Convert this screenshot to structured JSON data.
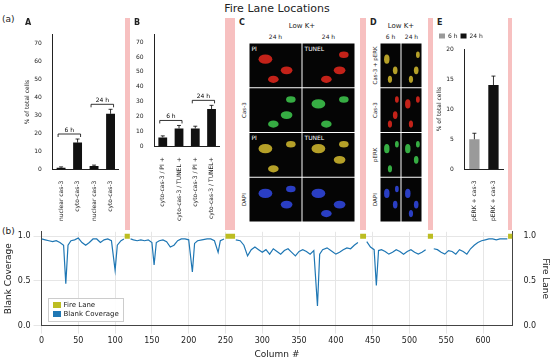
{
  "title": "Fire Lane Locations",
  "panel_labels": [
    "(a)",
    "(b)"
  ],
  "figure": {
    "panels": [
      {
        "label": "A",
        "type": "bar",
        "y_label": "% of total cells",
        "categories": [
          "nuclear cas-3",
          "cyto-cas-3",
          "nuclear cas-3",
          "cyto-cas-3"
        ],
        "values": [
          1,
          15,
          2,
          31
        ],
        "errors": [
          0.5,
          2,
          0.5,
          2.5
        ],
        "color": "#111111",
        "groups": [
          {
            "label": "6 h",
            "from": 0,
            "to": 1
          },
          {
            "label": "24 h",
            "from": 2,
            "to": 3
          }
        ],
        "ylim": [
          0,
          75
        ],
        "yticks": [
          0,
          10,
          20,
          30,
          40,
          50,
          60,
          70
        ],
        "grid": false
      },
      {
        "label": "B",
        "type": "bar",
        "categories": [
          "cyto-cas-3 / PI +",
          "cyto-cas-3 / TUNEL +",
          "cyto-cas-3 / PI +",
          "cyto-cas-3 / TUNEL+"
        ],
        "values": [
          6,
          12,
          12,
          25
        ],
        "errors": [
          1,
          2,
          1.5,
          2.5
        ],
        "color": "#111111",
        "groups": [
          {
            "label": "6 h",
            "from": 0,
            "to": 1
          },
          {
            "label": "24 h",
            "from": 2,
            "to": 3
          }
        ],
        "ylim": [
          0,
          75
        ],
        "yticks": [
          0,
          10,
          20,
          30,
          40,
          50,
          60,
          70
        ],
        "grid": false
      },
      {
        "label": "C",
        "type": "micrograph",
        "header": "Low K+",
        "columns": [
          "24 h",
          "24 h"
        ],
        "rows": [
          {
            "label": null,
            "cells": [
              "PI",
              "TUNEL"
            ],
            "color": "#d8261c"
          },
          {
            "label": "Cas-3",
            "cells": [
              null,
              null
            ],
            "color": "#3cc04a"
          },
          {
            "label": null,
            "cells": [
              "PI",
              "TUNEL"
            ],
            "color": "#c9b12c"
          },
          {
            "label": "DAPI",
            "cells": [
              null,
              null
            ],
            "color": "#2f45d8"
          }
        ]
      },
      {
        "label": "D",
        "type": "micrograph",
        "header": "Low K+",
        "columns": [
          "6 h",
          "24 h"
        ],
        "rows": [
          {
            "label": "Cas-3 + pERK",
            "cells": [
              null,
              null
            ],
            "color": "#c9b12c"
          },
          {
            "label": "Cas-3",
            "cells": [
              null,
              null
            ],
            "color": "#d8261c"
          },
          {
            "label": "pERK",
            "cells": [
              null,
              null
            ],
            "color": "#3cc04a"
          },
          {
            "label": "DAPI",
            "cells": [
              null,
              null
            ],
            "color": "#2f45d8"
          }
        ]
      },
      {
        "label": "E",
        "type": "bar",
        "y_label": "% of total cells",
        "categories": [
          "pERK + cas-3",
          "pERK + cas-3"
        ],
        "series": [
          {
            "name": "6 h",
            "color": "#9a9a9a",
            "values": [
              5,
              null
            ],
            "errors": [
              1,
              null
            ]
          },
          {
            "name": "24 h",
            "color": "#111111",
            "values": [
              null,
              14
            ],
            "errors": [
              null,
              1.5
            ]
          }
        ],
        "legend": "upper left",
        "ylim": [
          0,
          20
        ],
        "yticks": [
          0,
          5,
          10,
          15,
          20
        ],
        "grid": false
      }
    ]
  },
  "chart_data": {
    "type": "line",
    "x_label": "Column #",
    "y_label": "Blank Coverage",
    "y2_label": "Fire Lane",
    "xlim": [
      0,
      640
    ],
    "xticks": [
      0,
      50,
      100,
      150,
      200,
      250,
      300,
      350,
      400,
      450,
      500,
      550,
      600
    ],
    "ylim": [
      0,
      1.05
    ],
    "yticks": [
      {
        "value": 0,
        "label": "0.0"
      },
      0.5,
      {
        "value": 1,
        "label": "1.0"
      }
    ],
    "y2lim": [
      0,
      1.05
    ],
    "y2ticks": [
      {
        "value": 0,
        "label": "0.0"
      },
      0.5,
      {
        "value": 1,
        "label": "1.0"
      }
    ],
    "grid": true,
    "legend": "lower left",
    "series": [
      {
        "name": "Fire Lane",
        "color": "#bcbd22",
        "axis": "y2",
        "x": [
          113,
          120,
          121,
          250,
          263,
          264,
          433,
          441,
          442,
          525,
          532,
          533,
          634,
          640
        ],
        "values": [
          1,
          1,
          null,
          1,
          1,
          null,
          1,
          1,
          null,
          1,
          1,
          null,
          1,
          1
        ]
      },
      {
        "name": "Blank Coverage",
        "color": "#1f77b4",
        "x": [
          0,
          5,
          10,
          15,
          20,
          25,
          30,
          33,
          36,
          40,
          45,
          50,
          55,
          60,
          65,
          70,
          75,
          80,
          85,
          90,
          95,
          100,
          103,
          108,
          112,
          113,
          121,
          125,
          130,
          135,
          140,
          145,
          150,
          153,
          156,
          160,
          165,
          170,
          175,
          180,
          185,
          190,
          195,
          200,
          205,
          208,
          212,
          218,
          225,
          230,
          235,
          240,
          243,
          248,
          250,
          264,
          270,
          275,
          280,
          285,
          290,
          295,
          300,
          305,
          310,
          315,
          320,
          325,
          330,
          335,
          340,
          345,
          350,
          355,
          360,
          365,
          370,
          375,
          378,
          382,
          388,
          395,
          400,
          405,
          410,
          415,
          420,
          425,
          430,
          433,
          442,
          447,
          452,
          455,
          458,
          462,
          467,
          472,
          477,
          482,
          487,
          492,
          497,
          502,
          507,
          512,
          517,
          522,
          525,
          533,
          538,
          543,
          548,
          553,
          558,
          563,
          568,
          573,
          578,
          583,
          588,
          593,
          598,
          603,
          608,
          613,
          618,
          623,
          628,
          633
        ],
        "values": [
          0.97,
          0.96,
          0.95,
          0.94,
          0.95,
          0.93,
          0.9,
          0.47,
          0.9,
          0.95,
          0.96,
          0.98,
          0.93,
          0.9,
          0.93,
          0.97,
          0.97,
          0.93,
          0.96,
          0.97,
          0.95,
          0.62,
          0.9,
          0.95,
          0.97,
          null,
          0.97,
          0.96,
          0.95,
          0.96,
          0.95,
          0.96,
          0.93,
          0.68,
          0.93,
          0.95,
          0.96,
          0.94,
          0.88,
          0.9,
          0.95,
          0.97,
          0.97,
          0.96,
          0.6,
          0.92,
          0.95,
          0.96,
          0.97,
          0.97,
          0.95,
          0.82,
          0.95,
          0.97,
          null,
          0.96,
          0.95,
          0.9,
          0.78,
          0.85,
          0.88,
          0.85,
          0.82,
          0.85,
          0.8,
          0.86,
          0.83,
          0.8,
          0.84,
          0.86,
          0.82,
          0.78,
          0.83,
          0.85,
          0.83,
          0.8,
          0.84,
          0.22,
          0.8,
          0.85,
          0.87,
          0.83,
          0.8,
          0.82,
          0.85,
          0.87,
          0.86,
          0.9,
          0.93,
          null,
          0.94,
          0.88,
          0.85,
          0.45,
          0.84,
          0.85,
          0.83,
          0.8,
          0.82,
          0.85,
          0.83,
          0.8,
          0.83,
          0.85,
          0.82,
          0.8,
          0.82,
          0.85,
          null,
          0.86,
          0.85,
          0.82,
          0.8,
          0.84,
          0.83,
          0.8,
          0.85,
          0.83,
          0.8,
          0.86,
          0.9,
          0.93,
          0.95,
          0.96,
          0.97,
          0.97,
          0.96,
          0.97,
          0.97,
          0.97
        ]
      }
    ]
  }
}
